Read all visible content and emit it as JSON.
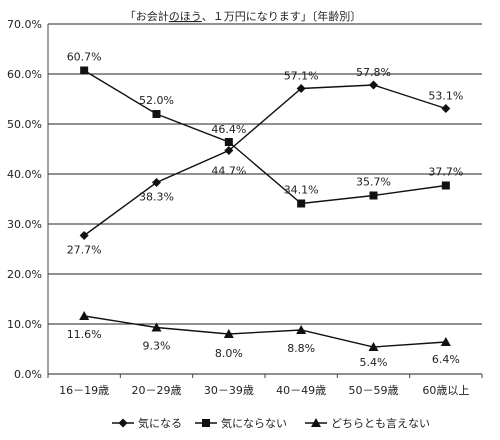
{
  "chart_data": {
    "type": "line",
    "title": "「お会計のほう、１万円になります」〔年齢別〕",
    "title_underlined": "のほう",
    "title_parts": [
      "「お会計",
      "のほう",
      "、１万円になります」〔年齢別〕"
    ],
    "categories": [
      "16－19歳",
      "20－29歳",
      "30－39歳",
      "40－49歳",
      "50－59歳",
      "60歳以上"
    ],
    "ylim": [
      0,
      70
    ],
    "ytick_values": [
      0,
      10,
      20,
      30,
      40,
      50,
      60,
      70
    ],
    "yticks": [
      "0.0%",
      "10.0%",
      "20.0%",
      "30.0%",
      "40.0%",
      "50.0%",
      "60.0%",
      "70.0%"
    ],
    "grid": true,
    "legend_position": "bottom",
    "series": [
      {
        "name": "気になる",
        "marker": "diamond",
        "values": [
          27.7,
          38.3,
          44.7,
          57.1,
          57.8,
          53.1
        ],
        "labels": [
          "27.7%",
          "38.3%",
          "44.7%",
          "57.1%",
          "57.8%",
          "53.1%"
        ]
      },
      {
        "name": "気にならない",
        "marker": "square",
        "values": [
          60.7,
          52.0,
          46.4,
          34.1,
          35.7,
          37.7
        ],
        "labels": [
          "60.7%",
          "52.0%",
          "46.4%",
          "34.1%",
          "35.7%",
          "37.7%"
        ]
      },
      {
        "name": "どちらとも言えない",
        "marker": "triangle",
        "values": [
          11.6,
          9.3,
          8.0,
          8.8,
          5.4,
          6.4
        ],
        "labels": [
          "11.6%",
          "9.3%",
          "8.0%",
          "8.8%",
          "5.4%",
          "6.4%"
        ]
      }
    ],
    "colors": {
      "line": "#111111",
      "grid": "#222222",
      "axis": "#444444"
    }
  }
}
